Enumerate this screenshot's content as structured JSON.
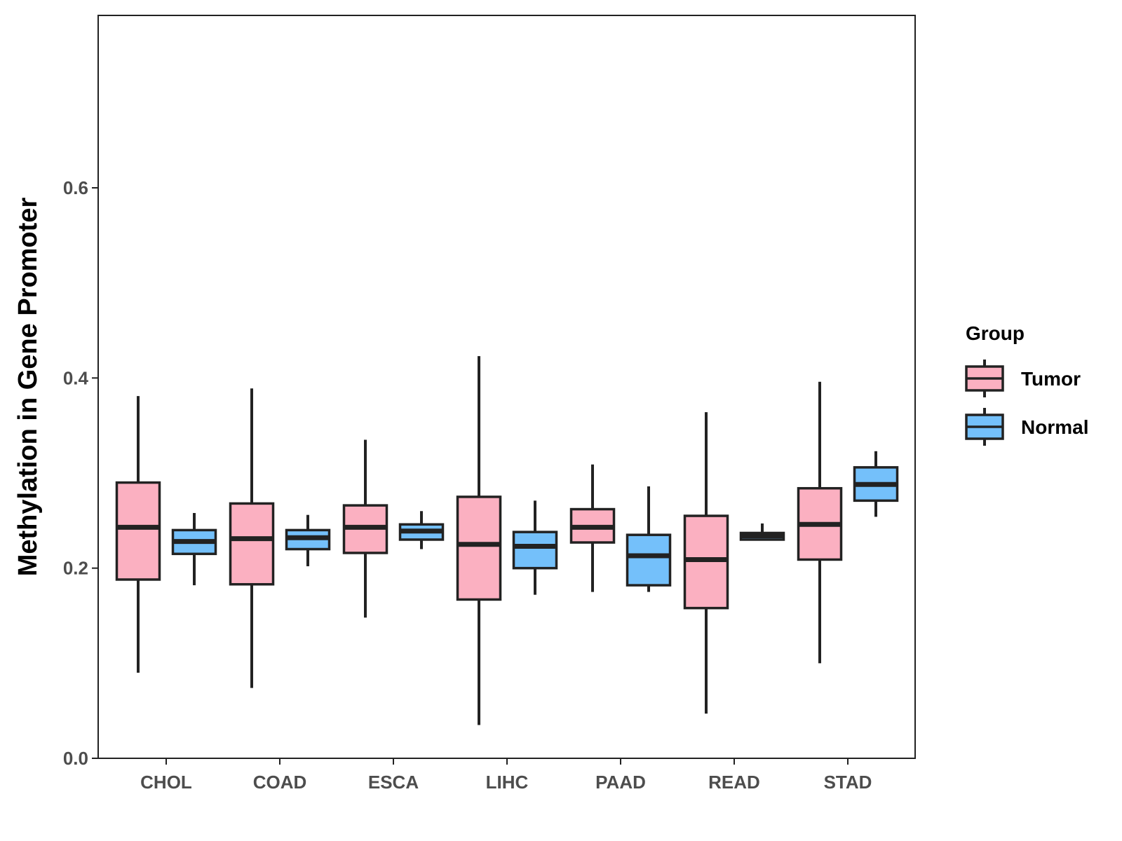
{
  "chart_data": {
    "type": "boxplot",
    "title": "",
    "xlabel": "",
    "ylabel": "Methylation in Gene Promoter",
    "ylim": [
      0,
      0.79
    ],
    "yticks": [
      0.0,
      0.2,
      0.4,
      0.6
    ],
    "ytick_labels": [
      "0.0",
      "0.2",
      "0.4",
      "0.6"
    ],
    "grid": false,
    "categories": [
      "CHOL",
      "COAD",
      "ESCA",
      "LIHC",
      "PAAD",
      "READ",
      "STAD"
    ],
    "legend": {
      "title": "Group",
      "position": "right"
    },
    "series": [
      {
        "name": "Tumor",
        "color": "#FBB0C1",
        "boxes": [
          {
            "min": 0.09,
            "q1": 0.188,
            "median": 0.243,
            "q3": 0.29,
            "max": 0.381
          },
          {
            "min": 0.074,
            "q1": 0.183,
            "median": 0.231,
            "q3": 0.268,
            "max": 0.389
          },
          {
            "min": 0.148,
            "q1": 0.216,
            "median": 0.243,
            "q3": 0.266,
            "max": 0.335
          },
          {
            "min": 0.035,
            "q1": 0.167,
            "median": 0.225,
            "q3": 0.275,
            "max": 0.423
          },
          {
            "min": 0.175,
            "q1": 0.227,
            "median": 0.243,
            "q3": 0.262,
            "max": 0.309
          },
          {
            "min": 0.047,
            "q1": 0.158,
            "median": 0.209,
            "q3": 0.255,
            "max": 0.364
          },
          {
            "min": 0.1,
            "q1": 0.209,
            "median": 0.246,
            "q3": 0.284,
            "max": 0.396
          }
        ]
      },
      {
        "name": "Normal",
        "color": "#74C0FA",
        "boxes": [
          {
            "min": 0.182,
            "q1": 0.215,
            "median": 0.228,
            "q3": 0.24,
            "max": 0.258
          },
          {
            "min": 0.202,
            "q1": 0.22,
            "median": 0.232,
            "q3": 0.24,
            "max": 0.256
          },
          {
            "min": 0.22,
            "q1": 0.23,
            "median": 0.239,
            "q3": 0.246,
            "max": 0.26
          },
          {
            "min": 0.172,
            "q1": 0.2,
            "median": 0.223,
            "q3": 0.238,
            "max": 0.271
          },
          {
            "min": 0.175,
            "q1": 0.182,
            "median": 0.213,
            "q3": 0.235,
            "max": 0.286
          },
          {
            "min": 0.23,
            "q1": 0.23,
            "median": 0.234,
            "q3": 0.237,
            "max": 0.247
          },
          {
            "min": 0.254,
            "q1": 0.271,
            "median": 0.288,
            "q3": 0.306,
            "max": 0.323
          }
        ]
      }
    ]
  }
}
